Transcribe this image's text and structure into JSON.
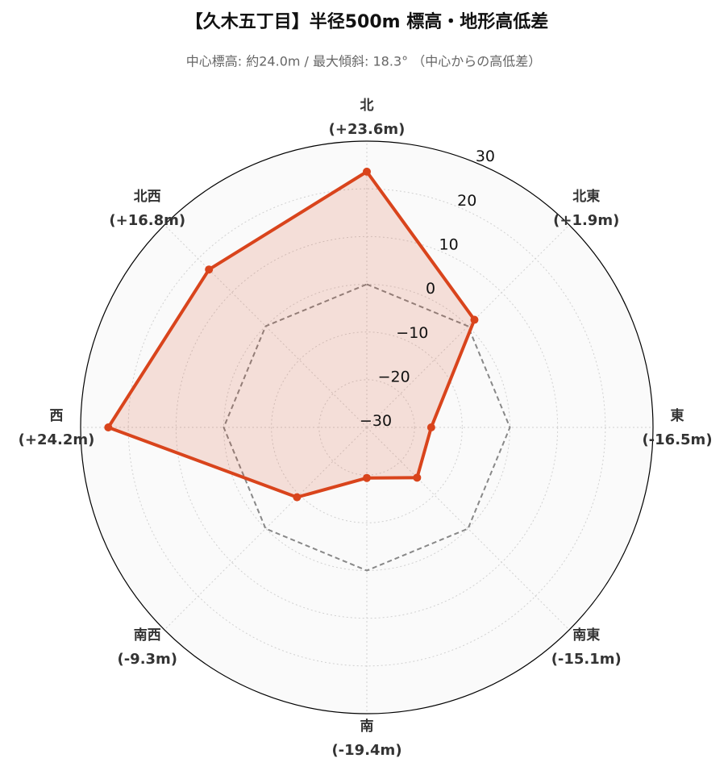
{
  "chart_data": {
    "type": "radar",
    "title": "【久木五丁目】半径500m 標高・地形高低差",
    "subtitle": "中心標高: 約24.0m / 最大傾斜: 18.3° （中心からの高低差）",
    "categories": [
      "北",
      "北東",
      "東",
      "南東",
      "南",
      "南西",
      "西",
      "北西"
    ],
    "values": [
      23.6,
      1.9,
      -16.5,
      -15.1,
      -19.4,
      -9.3,
      24.2,
      16.8
    ],
    "value_labels": [
      "(+23.6m)",
      "(+1.9m)",
      "(-16.5m)",
      "(-15.1m)",
      "(-19.4m)",
      "(-9.3m)",
      "(+24.2m)",
      "(+16.8m)"
    ],
    "color": "#d9441c",
    "reference": {
      "value": 0,
      "color": "#888888"
    },
    "ylim": [
      -30,
      30
    ],
    "yticks": [
      {
        "value": -30,
        "label": "−30"
      },
      {
        "value": -20,
        "label": "−20"
      },
      {
        "value": -10,
        "label": "−10"
      },
      0,
      10,
      20,
      30
    ],
    "grid": true
  }
}
